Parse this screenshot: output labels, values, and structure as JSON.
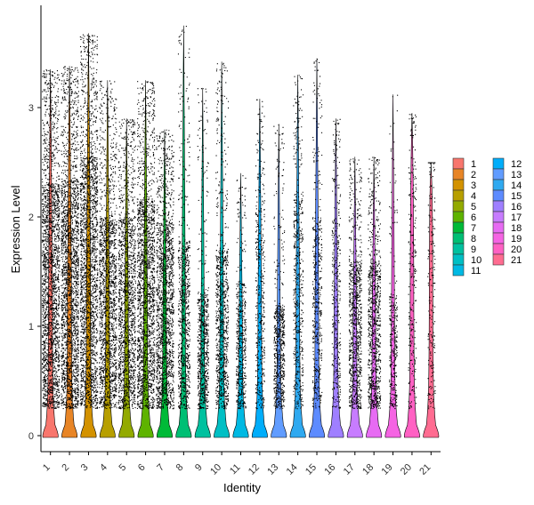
{
  "chart_data": {
    "type": "violin",
    "xlabel": "Identity",
    "ylabel": "Expression Level",
    "categories": [
      "1",
      "2",
      "3",
      "4",
      "5",
      "6",
      "7",
      "8",
      "9",
      "10",
      "11",
      "12",
      "13",
      "14",
      "15",
      "16",
      "17",
      "18",
      "19",
      "20",
      "21"
    ],
    "ylim": [
      -0.2,
      3.95
    ],
    "y_ticks": [
      0,
      1,
      2,
      3
    ],
    "legend_position": "right",
    "grid": false,
    "series": [
      {
        "name": "1",
        "color": "#F8766D",
        "max": 3.35,
        "point_density": 1.0,
        "upper_body": 2.3
      },
      {
        "name": "2",
        "color": "#E88526",
        "max": 3.38,
        "point_density": 1.0,
        "upper_body": 2.35
      },
      {
        "name": "3",
        "color": "#D39200",
        "max": 3.68,
        "point_density": 1.0,
        "upper_body": 2.55
      },
      {
        "name": "4",
        "color": "#B79F00",
        "max": 3.25,
        "point_density": 0.75,
        "upper_body": 2.0
      },
      {
        "name": "5",
        "color": "#93AA00",
        "max": 2.9,
        "point_density": 0.7,
        "upper_body": 2.0
      },
      {
        "name": "6",
        "color": "#5EB300",
        "max": 3.25,
        "point_density": 0.85,
        "upper_body": 2.15
      },
      {
        "name": "7",
        "color": "#00BA38",
        "max": 2.8,
        "point_density": 0.75,
        "upper_body": 1.95
      },
      {
        "name": "8",
        "color": "#00BF74",
        "max": 3.75,
        "point_density": 0.35,
        "upper_body": 1.8
      },
      {
        "name": "9",
        "color": "#00C19F",
        "max": 3.18,
        "point_density": 0.3,
        "upper_body": 1.3
      },
      {
        "name": "10",
        "color": "#00BFC4",
        "max": 3.42,
        "point_density": 0.4,
        "upper_body": 1.7
      },
      {
        "name": "11",
        "color": "#00B9E3",
        "max": 2.4,
        "point_density": 0.22,
        "upper_body": 1.4
      },
      {
        "name": "12",
        "color": "#00ADFA",
        "max": 3.08,
        "point_density": 0.18,
        "upper_body": 2.1
      },
      {
        "name": "13",
        "color": "#619CFF",
        "max": 2.85,
        "point_density": 0.28,
        "upper_body": 1.2
      },
      {
        "name": "14",
        "color": "#2FA9F0",
        "max": 3.3,
        "point_density": 0.22,
        "upper_body": 2.2
      },
      {
        "name": "15",
        "color": "#5D8BFF",
        "max": 3.45,
        "point_density": 0.2,
        "upper_body": 2.0
      },
      {
        "name": "16",
        "color": "#9F7FFF",
        "max": 2.9,
        "point_density": 0.15,
        "upper_body": 2.0
      },
      {
        "name": "17",
        "color": "#C77CFF",
        "max": 2.55,
        "point_density": 0.4,
        "upper_body": 1.6
      },
      {
        "name": "18",
        "color": "#E76BF3",
        "max": 2.55,
        "point_density": 0.4,
        "upper_body": 1.6
      },
      {
        "name": "19",
        "color": "#F564E3",
        "max": 3.12,
        "point_density": 0.12,
        "upper_body": 1.3
      },
      {
        "name": "20",
        "color": "#FF61C3",
        "max": 2.95,
        "point_density": 0.1,
        "upper_body": 2.5
      },
      {
        "name": "21",
        "color": "#FF6C91",
        "max": 2.5,
        "point_density": 0.08,
        "upper_body": 2.5
      }
    ]
  }
}
